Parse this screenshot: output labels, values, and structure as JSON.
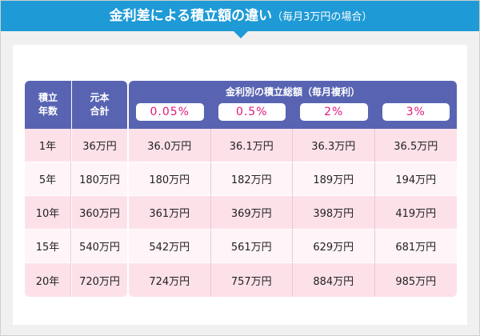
{
  "header": {
    "title": "金利差による積立額の違い",
    "subtitle": "（毎月3万円の場合）"
  },
  "table": {
    "left_headers": [
      [
        "積立",
        "年数"
      ],
      [
        "元本",
        "合計"
      ]
    ],
    "group_header": "金利別の積立総額（毎月複利）",
    "rates": [
      "0.05%",
      "0.5%",
      "2%",
      "3%"
    ],
    "rows": [
      [
        "1年",
        "36万円",
        "36.0万円",
        "36.1万円",
        "36.3万円",
        "36.5万円"
      ],
      [
        "5年",
        "180万円",
        "180万円",
        "182万円",
        "189万円",
        "194万円"
      ],
      [
        "10年",
        "360万円",
        "361万円",
        "369万円",
        "398万円",
        "419万円"
      ],
      [
        "15年",
        "540万円",
        "542万円",
        "561万円",
        "629万円",
        "681万円"
      ],
      [
        "20年",
        "720万円",
        "724万円",
        "757万円",
        "884万円",
        "985万円"
      ]
    ]
  }
}
